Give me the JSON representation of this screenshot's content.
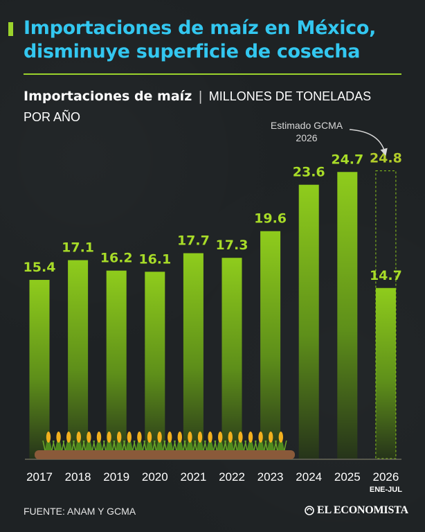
{
  "title_line1": "Importaciones de maíz en México,",
  "title_line2": "disminuye superficie de cosecha",
  "subtitle_main": "Importaciones de maíz",
  "subtitle_sep": "|",
  "subtitle_unit_line1": "MILLONES DE TONELADAS",
  "subtitle_unit_line2": "POR AÑO",
  "estimate_note_line1": "Estimado GCMA",
  "estimate_note_line2": "2026",
  "footer_source": "FUENTE: ANAM Y GCMA",
  "logo_text": "EL ECONOMISTA",
  "colors": {
    "background": "#1e2224",
    "title": "#33c7f0",
    "accent": "#9bd32c",
    "bar_top": "#8fcc1c",
    "bar_bottom": "#2a3a18",
    "label": "#a8dc28"
  },
  "chart_data": {
    "type": "bar",
    "title": "Importaciones de maíz",
    "ylabel": "MILLONES DE TONELADAS POR AÑO",
    "categories": [
      "2017",
      "2018",
      "2019",
      "2020",
      "2021",
      "2022",
      "2023",
      "2024",
      "2025",
      "2026"
    ],
    "category_sublabels": [
      "",
      "",
      "",
      "",
      "",
      "",
      "",
      "",
      "",
      "ENE-JUL"
    ],
    "values": [
      15.4,
      17.1,
      16.2,
      16.1,
      17.7,
      17.3,
      19.6,
      23.6,
      24.7,
      14.7
    ],
    "value_labels": [
      "15.4",
      "17.1",
      "16.2",
      "16.1",
      "17.7",
      "17.3",
      "19.6",
      "23.6",
      "24.7",
      "14.7"
    ],
    "estimate": {
      "category": "2026",
      "value": 24.8,
      "label": "24.8",
      "note": "Estimado GCMA 2026",
      "style": "dashed-outline"
    },
    "ylim": [
      0,
      30
    ],
    "grid": false,
    "legend": "none"
  }
}
